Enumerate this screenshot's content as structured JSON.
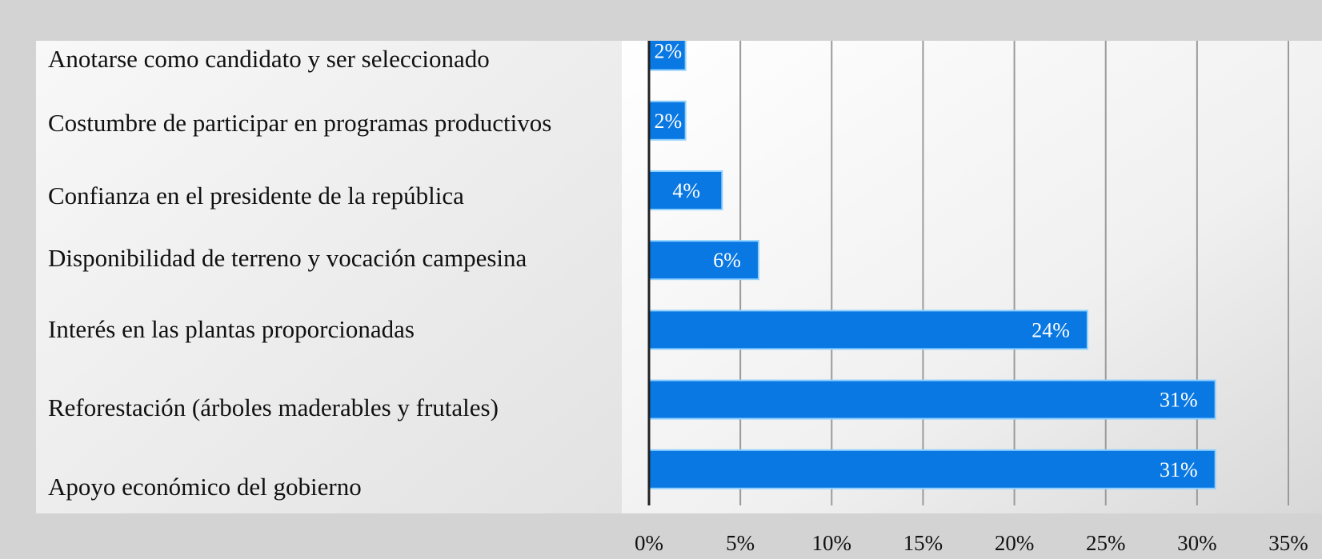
{
  "chart_data": {
    "type": "bar",
    "orientation": "horizontal",
    "categories": [
      "Anotarse como candidato y ser seleccionado",
      "Costumbre de participar en programas productivos",
      "Confianza en el presidente de la república",
      "Disponibilidad de terreno y vocación campesina",
      "Interés en las plantas proporcionadas",
      "Reforestación (árboles maderables y frutales)",
      "Apoyo económico del gobierno"
    ],
    "values": [
      2,
      2,
      4,
      6,
      24,
      31,
      31
    ],
    "data_labels": [
      "2%",
      "2%",
      "4%",
      "6%",
      "24%",
      "31%",
      "31%"
    ],
    "title": "",
    "xlabel": "",
    "ylabel": "",
    "xlim": [
      0,
      35
    ],
    "x_ticks": [
      "0%",
      "5%",
      "10%",
      "15%",
      "20%",
      "25%",
      "30%",
      "35%"
    ],
    "grid": "vertical",
    "legend": "none",
    "colors": {
      "bar": "#0a78e2",
      "bar_edge": "#8fd0ff",
      "background": "#d3d3d3",
      "axis": "#222222",
      "grid": "#9a9a9a"
    }
  }
}
